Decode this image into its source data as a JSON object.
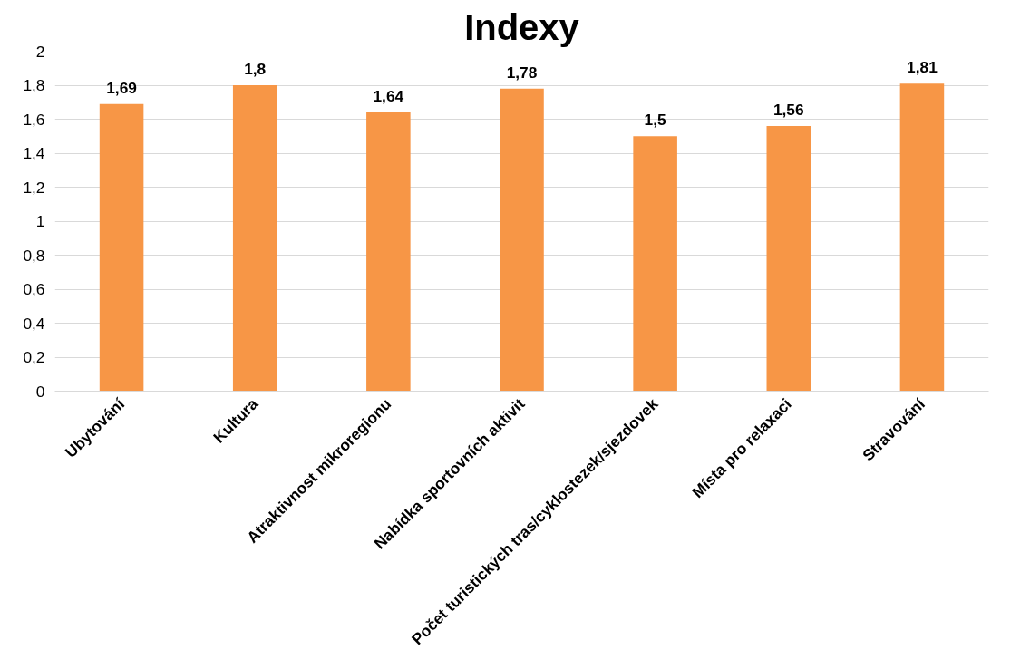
{
  "chart_data": {
    "type": "bar",
    "title": "Indexy",
    "categories": [
      "Ubytování",
      "Kultura",
      "Atraktivnost mikroregionu",
      "Nabídka sportovních aktivit",
      "Počet turistických tras/cyklostezek/sjezdovek",
      "Místa pro relaxaci",
      "Stravování"
    ],
    "values": [
      1.69,
      1.8,
      1.64,
      1.78,
      1.5,
      1.56,
      1.81
    ],
    "value_labels": [
      "1,69",
      "1,8",
      "1,64",
      "1,78",
      "1,5",
      "1,56",
      "1,81"
    ],
    "color": "#f79646",
    "ylim": [
      0,
      2
    ],
    "yticks": [
      0,
      {
        "value": 0.2,
        "label": "0,2"
      },
      {
        "value": 0.4,
        "label": "0,4"
      },
      {
        "value": 0.6,
        "label": "0,6"
      },
      {
        "value": 0.8,
        "label": "0,8"
      },
      1,
      {
        "value": 1.2,
        "label": "1,2"
      },
      {
        "value": 1.4,
        "label": "1,4"
      },
      {
        "value": 1.6,
        "label": "1,6"
      },
      {
        "value": 1.8,
        "label": "1,8"
      },
      2
    ],
    "grid": "y"
  }
}
